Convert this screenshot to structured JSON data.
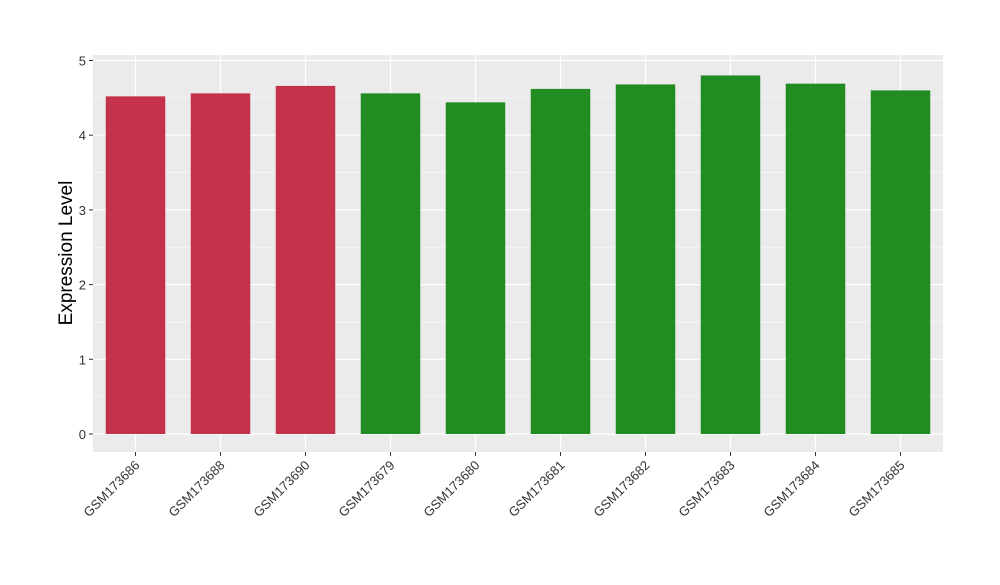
{
  "chart_data": {
    "type": "bar",
    "title": "",
    "xlabel": "",
    "ylabel": "Expression Level",
    "ylim": [
      -0.25,
      5.05
    ],
    "yticks": [
      0,
      1,
      2,
      3,
      4,
      5
    ],
    "grid": true,
    "categories": [
      "GSM173686",
      "GSM173688",
      "GSM173690",
      "GSM173679",
      "GSM173680",
      "GSM173681",
      "GSM173682",
      "GSM173683",
      "GSM173684",
      "GSM173685"
    ],
    "values": [
      4.52,
      4.56,
      4.66,
      4.56,
      4.44,
      4.62,
      4.68,
      4.8,
      4.69,
      4.6
    ],
    "colors": [
      "#C3324A",
      "#C3324A",
      "#C3324A",
      "#228B22",
      "#228B22",
      "#228B22",
      "#228B22",
      "#228B22",
      "#228B22",
      "#228B22"
    ],
    "panel_background": "#EBEBEB"
  }
}
